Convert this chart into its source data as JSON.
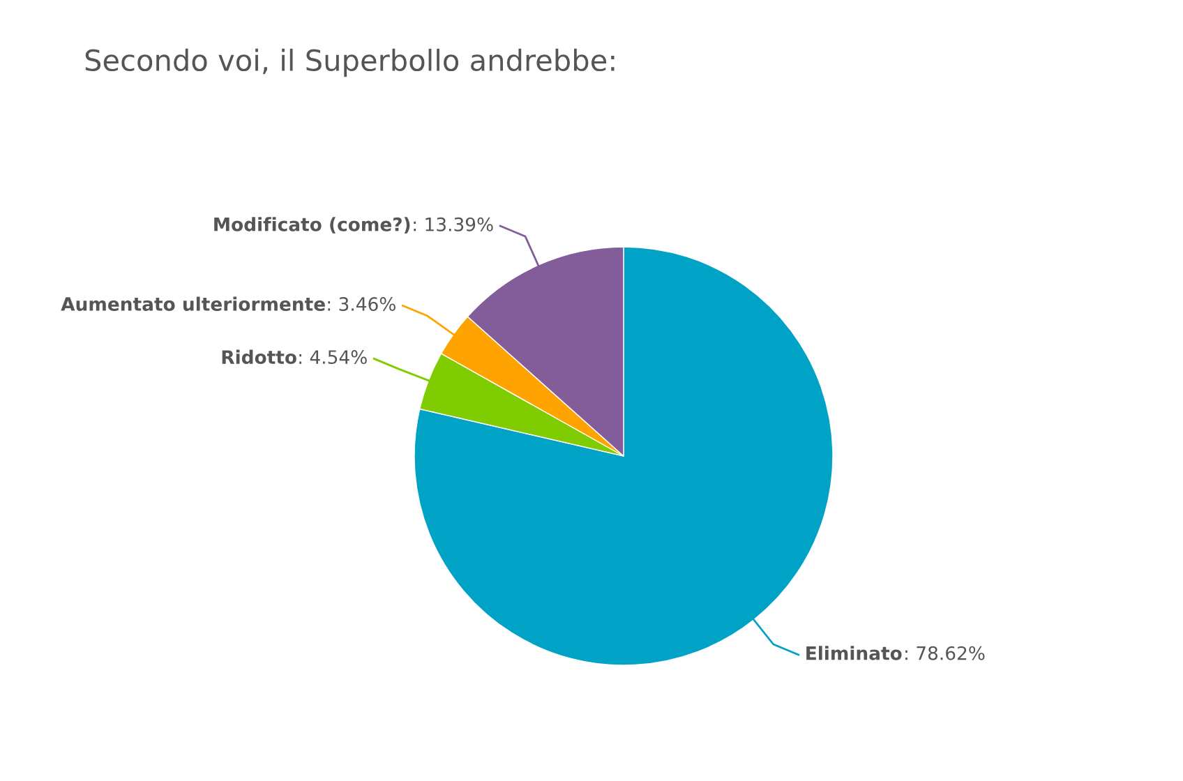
{
  "chart_data": {
    "type": "pie",
    "title": "Secondo voi, il Superbollo andrebbe:",
    "categories": [
      "Eliminato",
      "Ridotto",
      "Aumentato ulteriormente",
      "Modificato (come?)"
    ],
    "values": [
      78.62,
      4.54,
      3.46,
      13.39
    ],
    "colors": [
      "#00a3c6",
      "#7fcc00",
      "#ffa300",
      "#825d99"
    ],
    "value_labels": [
      ": 78.62%",
      ": 4.54%",
      ": 3.46%",
      ": 13.39%"
    ],
    "legend": false
  }
}
